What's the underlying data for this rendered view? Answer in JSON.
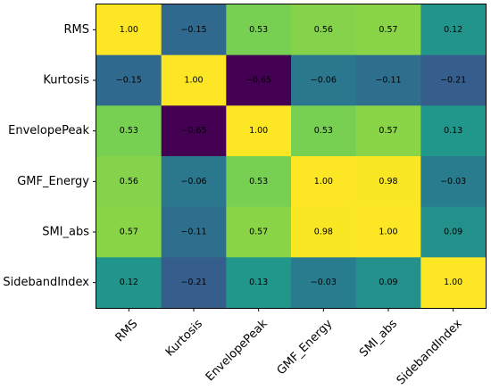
{
  "chart_data": {
    "type": "heatmap",
    "title": "",
    "xlabel": "",
    "ylabel": "",
    "x_categories": [
      "RMS",
      "Kurtosis",
      "EnvelopePeak",
      "GMF_Energy",
      "SMI_abs",
      "SidebandIndex"
    ],
    "y_categories": [
      "RMS",
      "Kurtosis",
      "EnvelopePeak",
      "GMF_Energy",
      "SMI_abs",
      "SidebandIndex"
    ],
    "values": [
      [
        1.0,
        -0.15,
        0.53,
        0.56,
        0.57,
        0.12
      ],
      [
        -0.15,
        1.0,
        -0.65,
        -0.06,
        -0.11,
        -0.21
      ],
      [
        0.53,
        -0.65,
        1.0,
        0.53,
        0.57,
        0.13
      ],
      [
        0.56,
        -0.06,
        0.53,
        1.0,
        0.98,
        -0.03
      ],
      [
        0.57,
        -0.11,
        0.57,
        0.98,
        1.0,
        0.09
      ],
      [
        0.12,
        -0.21,
        0.13,
        -0.03,
        0.09,
        1.0
      ]
    ],
    "cell_labels": [
      [
        "1.00",
        "−0.15",
        "0.53",
        "0.56",
        "0.57",
        "0.12"
      ],
      [
        "−0.15",
        "1.00",
        "−0.65",
        "−0.06",
        "−0.11",
        "−0.21"
      ],
      [
        "0.53",
        "−0.65",
        "1.00",
        "0.53",
        "0.57",
        "0.13"
      ],
      [
        "0.56",
        "−0.06",
        "0.53",
        "1.00",
        "0.98",
        "−0.03"
      ],
      [
        "0.57",
        "−0.11",
        "0.57",
        "0.98",
        "1.00",
        "0.09"
      ],
      [
        "0.12",
        "−0.21",
        "0.13",
        "−0.03",
        "0.09",
        "1.00"
      ]
    ],
    "colormap": "viridis",
    "value_range": [
      -0.65,
      1.0
    ],
    "grid": false
  }
}
